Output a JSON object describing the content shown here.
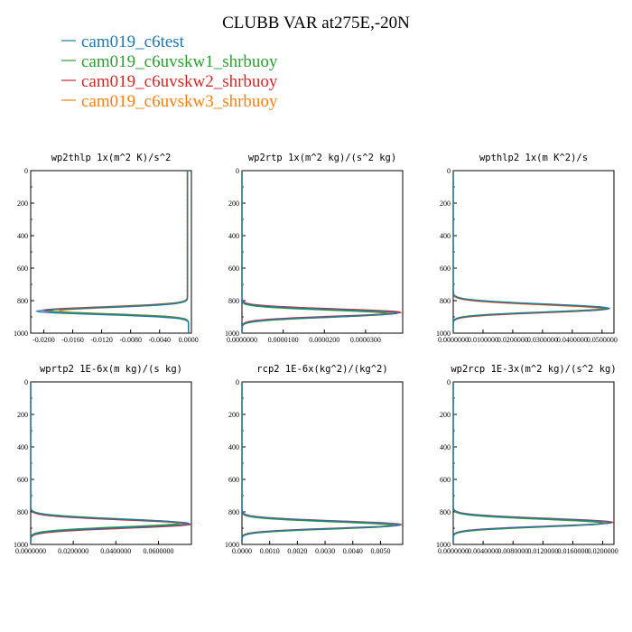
{
  "chart_data": {
    "title": "CLUBB VAR at275E,-20N",
    "series": [
      {
        "name": "cam019_c6test",
        "color": "#1f77b4"
      },
      {
        "name": "cam019_c6uvskw1_shrbuoy",
        "color": "#2ca02c"
      },
      {
        "name": "cam019_c6uvskw2_shrbuoy",
        "color": "#d62728"
      },
      {
        "name": "cam019_c6uvskw3_shrbuoy",
        "color": "#ff7f0e"
      }
    ],
    "panels": [
      {
        "title": "wp2thlp  1x(m^2 K)/s^2",
        "type": "line",
        "xlim": [
          -0.0218,
          0.0004
        ],
        "ylim": [
          1000,
          0
        ],
        "xticks": [
          "-0.0200",
          "-0.0160",
          "-0.0120",
          "-0.0080",
          "-0.0040",
          "0.0000"
        ],
        "xtick_values": [
          -0.02,
          -0.016,
          -0.012,
          -0.008,
          -0.004,
          0.0
        ],
        "yticks": [
          0,
          200,
          400,
          600,
          800,
          1000
        ],
        "profile": {
          "kind": "negative",
          "peak_p": [
            866,
            862,
            860,
            864
          ],
          "peak_v": [
            -0.0209,
            -0.0192,
            -0.02,
            -0.0178
          ],
          "w_above": 30,
          "w_below": 27,
          "residual": 0.00015
        }
      },
      {
        "title": "wp2rtp  1x(m^2 kg)/(s^2 kg)",
        "type": "line",
        "xlim": [
          0.0,
          3.9e-05
        ],
        "ylim": [
          1000,
          0
        ],
        "xticks": [
          "0.0000000",
          "0.0000100",
          "0.0000200",
          "0.0000300"
        ],
        "xtick_values": [
          0.0,
          1e-05,
          2e-05,
          3e-05
        ],
        "yticks": [
          0,
          200,
          400,
          600,
          800,
          1000
        ],
        "profile": {
          "kind": "positive",
          "peak_p": [
            876,
            880,
            872,
            878
          ],
          "peak_v": [
            3.78e-05,
            3.52e-05,
            3.85e-05,
            3.65e-05
          ],
          "w_above": 30,
          "w_below": 32,
          "residual": 0.0
        }
      },
      {
        "title": "wpthlp2  1x(m K^2)/s",
        "type": "line",
        "xlim": [
          0.0,
          0.054
        ],
        "ylim": [
          1000,
          0
        ],
        "xticks": [
          "0.0000000",
          "0.0100000",
          "0.0200000",
          "0.0300000",
          "0.0400000",
          "0.0500000"
        ],
        "xtick_values": [
          0.0,
          0.01,
          0.02,
          0.03,
          0.04,
          0.05
        ],
        "yticks": [
          0,
          200,
          400,
          600,
          800,
          1000
        ],
        "profile": {
          "kind": "positive",
          "peak_p": [
            848,
            846,
            850,
            852
          ],
          "peak_v": [
            0.0525,
            0.0515,
            0.052,
            0.0505
          ],
          "w_above": 36,
          "w_below": 32,
          "residual": 0.0
        }
      },
      {
        "title": "wprtp2  1E-6x(m kg)/(s kg)",
        "type": "line",
        "xlim": [
          0.0,
          0.0755
        ],
        "ylim": [
          1000,
          0
        ],
        "xticks": [
          "0.0000000",
          "0.0200000",
          "0.0400000",
          "0.0600000"
        ],
        "xtick_values": [
          0.0,
          0.02,
          0.04,
          0.06
        ],
        "yticks": [
          0,
          200,
          400,
          600,
          800,
          1000
        ],
        "profile": {
          "kind": "positive",
          "peak_p": [
            872,
            868,
            876,
            870
          ],
          "peak_v": [
            0.0745,
            0.07,
            0.075,
            0.0725
          ],
          "w_above": 36,
          "w_below": 34,
          "residual": 0.0
        }
      },
      {
        "title": "rcp2  1E-6x(kg^2)/(kg^2)",
        "type": "line",
        "xlim": [
          0.0,
          0.0058
        ],
        "ylim": [
          1000,
          0
        ],
        "xticks": [
          "0.0000",
          "0.0010",
          "0.0020",
          "0.0030",
          "0.0040",
          "0.0050"
        ],
        "xtick_values": [
          0.0,
          0.001,
          0.002,
          0.003,
          0.004,
          0.005
        ],
        "yticks": [
          0,
          200,
          400,
          600,
          800,
          1000
        ],
        "profile": {
          "kind": "positive",
          "peak_p": [
            880,
            884,
            878,
            882
          ],
          "peak_v": [
            0.0057,
            0.00545,
            0.00575,
            0.0056
          ],
          "w_above": 32,
          "w_below": 30,
          "residual": 0.0
        }
      },
      {
        "title": "wp2rcp  1E-3x(m^2 kg)/(s^2 kg)",
        "type": "line",
        "xlim": [
          0.0,
          0.0215
        ],
        "ylim": [
          1000,
          0
        ],
        "xticks": [
          "0.0000000",
          "0.0040000",
          "0.0080000",
          "0.0120000",
          "0.0160000",
          "0.0200000"
        ],
        "xtick_values": [
          0.0,
          0.004,
          0.008,
          0.012,
          0.016,
          0.02
        ],
        "yticks": [
          0,
          200,
          400,
          600,
          800,
          1000
        ],
        "profile": {
          "kind": "positive",
          "peak_p": [
            866,
            870,
            864,
            868
          ],
          "peak_v": [
            0.021,
            0.02,
            0.0213,
            0.0205
          ],
          "w_above": 34,
          "w_below": 32,
          "residual": 0.0
        }
      }
    ]
  }
}
